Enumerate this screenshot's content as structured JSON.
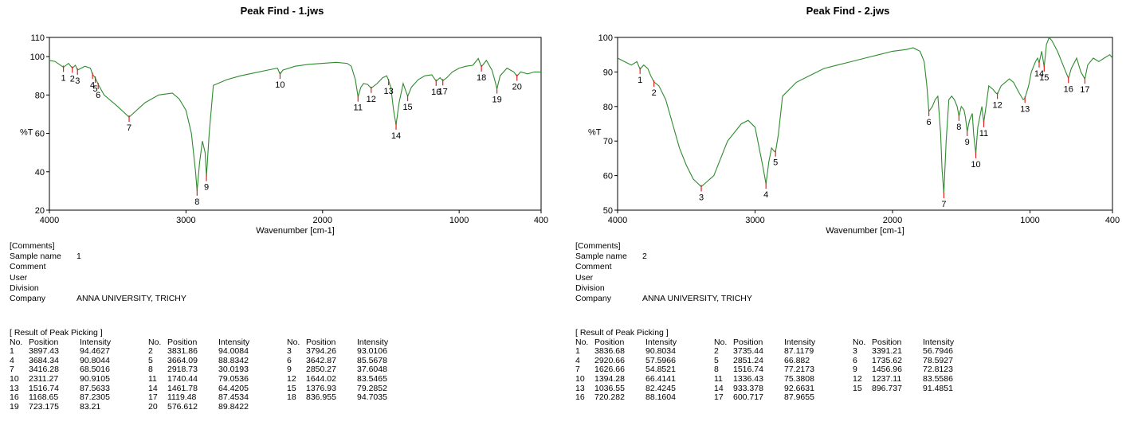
{
  "panels": [
    {
      "title": "Peak Find - 1.jws",
      "comments_header": "[Comments]",
      "fields": [
        {
          "label": "Sample name",
          "value": "1"
        },
        {
          "label": "Comment",
          "value": ""
        },
        {
          "label": "User",
          "value": ""
        },
        {
          "label": "Division",
          "value": ""
        },
        {
          "label": "Company",
          "value": "ANNA UNIVERSITY, TRICHY"
        }
      ],
      "results_header": "[ Result of Peak Picking ]",
      "columns": [
        "No.",
        "Position",
        "Intensity"
      ],
      "peaks": [
        [
          "1",
          "3897.43",
          "94.4627"
        ],
        [
          "2",
          "3831.86",
          "94.0084"
        ],
        [
          "3",
          "3794.26",
          "93.0106"
        ],
        [
          "4",
          "3684.34",
          "90.8044"
        ],
        [
          "5",
          "3664.09",
          "88.8342"
        ],
        [
          "6",
          "3642.87",
          "85.5678"
        ],
        [
          "7",
          "3416.28",
          "68.5016"
        ],
        [
          "8",
          "2918.73",
          "30.0193"
        ],
        [
          "9",
          "2850.27",
          "37.6048"
        ],
        [
          "10",
          "2311.27",
          "90.9105"
        ],
        [
          "11",
          "1740.44",
          "79.0536"
        ],
        [
          "12",
          "1644.02",
          "83.5465"
        ],
        [
          "13",
          "1516.74",
          "87.5633"
        ],
        [
          "14",
          "1461.78",
          "64.4205"
        ],
        [
          "15",
          "1376.93",
          "79.2852"
        ],
        [
          "16",
          "1168.65",
          "87.2305"
        ],
        [
          "17",
          "1119.48",
          "87.4534"
        ],
        [
          "18",
          "836.955",
          "94.7035"
        ],
        [
          "19",
          "723.175",
          "83.21"
        ],
        [
          "20",
          "576.612",
          "89.8422"
        ]
      ]
    },
    {
      "title": "Peak Find - 2.jws",
      "comments_header": "[Comments]",
      "fields": [
        {
          "label": "Sample name",
          "value": "2"
        },
        {
          "label": "Comment",
          "value": ""
        },
        {
          "label": "User",
          "value": ""
        },
        {
          "label": "Division",
          "value": ""
        },
        {
          "label": "Company",
          "value": "ANNA UNIVERSITY, TRICHY"
        }
      ],
      "results_header": "[ Result of Peak Picking ]",
      "columns": [
        "No.",
        "Position",
        "Intensity"
      ],
      "peaks": [
        [
          "1",
          "3836.68",
          "90.8034"
        ],
        [
          "2",
          "3735.44",
          "87.1179"
        ],
        [
          "3",
          "3391.21",
          "56.7946"
        ],
        [
          "4",
          "2920.66",
          "57.5966"
        ],
        [
          "5",
          "2851.24",
          "66.882"
        ],
        [
          "6",
          "1735.62",
          "78.5927"
        ],
        [
          "7",
          "1626.66",
          "54.8521"
        ],
        [
          "8",
          "1516.74",
          "77.2173"
        ],
        [
          "9",
          "1456.96",
          "72.8123"
        ],
        [
          "10",
          "1394.28",
          "66.4141"
        ],
        [
          "11",
          "1336.43",
          "75.3808"
        ],
        [
          "12",
          "1237.11",
          "83.5586"
        ],
        [
          "13",
          "1036.55",
          "82.4245"
        ],
        [
          "14",
          "933.378",
          "92.6631"
        ],
        [
          "15",
          "896.737",
          "91.4851"
        ],
        [
          "16",
          "720.282",
          "88.1604"
        ],
        [
          "17",
          "600.717",
          "87.9655"
        ]
      ]
    }
  ],
  "chart_data": [
    {
      "type": "line",
      "title": "Peak Find - 1.jws",
      "xlabel": "Wavenumber [cm-1]",
      "ylabel": "%T",
      "xlim": [
        4000,
        400
      ],
      "ylim": [
        20,
        110
      ],
      "xticks": [
        4000,
        3000,
        2000,
        1000,
        400
      ],
      "yticks": [
        20,
        40,
        60,
        80,
        100,
        110
      ],
      "grid": false,
      "line_color": "#2e8b2e",
      "marker_color": "#e02020",
      "series": [
        {
          "x": [
            4000,
            3960,
            3897.43,
            3860,
            3831.86,
            3810,
            3794.26,
            3740,
            3700,
            3684.34,
            3664.09,
            3642.87,
            3600,
            3500,
            3416.28,
            3300,
            3200,
            3100,
            3050,
            3000,
            2960,
            2930,
            2918.73,
            2900,
            2880,
            2860,
            2850.27,
            2830,
            2800,
            2700,
            2600,
            2500,
            2400,
            2330,
            2311.27,
            2290,
            2200,
            2100,
            2000,
            1900,
            1820,
            1790,
            1760,
            1740.44,
            1720,
            1700,
            1670,
            1644.02,
            1600,
            1560,
            1530,
            1516.74,
            1500,
            1480,
            1461.78,
            1440,
            1410,
            1376.93,
            1350,
            1300,
            1250,
            1200,
            1168.65,
            1140,
            1119.48,
            1090,
            1050,
            1000,
            950,
            900,
            860,
            836.955,
            800,
            760,
            740,
            723.175,
            700,
            650,
            600,
            576.612,
            550,
            500,
            450,
            400
          ],
          "y": [
            98,
            97.5,
            94.4627,
            96.5,
            94.0084,
            95.5,
            93.0106,
            95,
            94,
            90.8044,
            88.8342,
            85.5678,
            80,
            74,
            68.5016,
            76,
            80,
            81,
            78,
            72,
            60,
            40,
            30.0193,
            45,
            56,
            50,
            37.6048,
            60,
            85,
            88,
            90,
            91.5,
            93,
            94,
            90.9105,
            93,
            95,
            96,
            96.5,
            97,
            96.5,
            95,
            88,
            79.0536,
            84,
            86,
            85.5,
            83.5465,
            86,
            89,
            90,
            87.5633,
            84,
            72,
            64.4205,
            76,
            86,
            79.2852,
            84,
            88,
            90,
            90.5,
            87.2305,
            89,
            87.4534,
            89,
            92,
            94,
            95,
            95.5,
            99,
            94.7035,
            98,
            93,
            88,
            83.21,
            90,
            94,
            92,
            89.8422,
            92,
            91,
            92,
            92
          ]
        }
      ],
      "peak_labels": [
        "1",
        "2",
        "3",
        "4",
        "5",
        "6",
        "7",
        "8",
        "9",
        "10",
        "11",
        "12",
        "13",
        "14",
        "15",
        "16",
        "17",
        "18",
        "19",
        "20"
      ]
    },
    {
      "type": "line",
      "title": "Peak Find - 2.jws",
      "xlabel": "Wavenumber [cm-1]",
      "ylabel": "%T",
      "xlim": [
        4000,
        400
      ],
      "ylim": [
        50,
        100
      ],
      "xticks": [
        4000,
        3000,
        2000,
        1000,
        400
      ],
      "yticks": [
        50,
        60,
        70,
        80,
        90,
        100
      ],
      "grid": false,
      "line_color": "#2e8b2e",
      "marker_color": "#e02020",
      "series": [
        {
          "x": [
            4000,
            3950,
            3900,
            3860,
            3836.68,
            3810,
            3780,
            3760,
            3735.44,
            3700,
            3650,
            3600,
            3550,
            3500,
            3450,
            3391.21,
            3300,
            3200,
            3100,
            3050,
            3000,
            2960,
            2940,
            2920.66,
            2900,
            2880,
            2860,
            2851.24,
            2830,
            2800,
            2700,
            2600,
            2500,
            2400,
            2300,
            2200,
            2100,
            2000,
            1900,
            1850,
            1800,
            1770,
            1750,
            1735.62,
            1710,
            1690,
            1670,
            1650,
            1640,
            1626.66,
            1610,
            1590,
            1570,
            1550,
            1530,
            1516.74,
            1500,
            1480,
            1470,
            1456.96,
            1440,
            1420,
            1410,
            1394.28,
            1380,
            1360,
            1350,
            1336.43,
            1320,
            1300,
            1270,
            1250,
            1237.11,
            1210,
            1180,
            1150,
            1120,
            1080,
            1050,
            1036.55,
            1010,
            990,
            960,
            945,
            933.378,
            915,
            896.737,
            880,
            860,
            840,
            800,
            760,
            740,
            720.282,
            700,
            660,
            630,
            600.717,
            580,
            540,
            500,
            460,
            420,
            400
          ],
          "y": [
            94,
            93,
            92,
            93,
            90.8034,
            92,
            91,
            89,
            87.1179,
            86,
            82,
            75,
            68,
            63,
            59,
            56.7946,
            60,
            70,
            75,
            76,
            74,
            66,
            62,
            57.5966,
            64,
            68,
            67,
            66.882,
            72,
            83,
            87,
            89,
            91,
            92,
            93,
            94,
            95,
            96,
            96.5,
            97,
            96,
            93,
            86,
            78.5927,
            80,
            82,
            83,
            72,
            62,
            54.8521,
            70,
            82,
            83,
            82,
            80,
            77.2173,
            80,
            79,
            77,
            72.8123,
            76,
            78,
            72,
            66.4141,
            74,
            78,
            80,
            75.3808,
            80,
            86,
            85,
            84,
            83.5586,
            86,
            87,
            88,
            87,
            84,
            82,
            82.4245,
            86,
            90,
            93,
            94,
            92.6631,
            96,
            91.4851,
            98,
            100,
            99,
            96,
            92,
            90,
            88.1604,
            91,
            94,
            90,
            87.9655,
            92,
            94,
            93,
            94,
            95,
            94
          ]
        }
      ],
      "peak_labels": [
        "1",
        "2",
        "3",
        "4",
        "5",
        "6",
        "7",
        "8",
        "9",
        "10",
        "11",
        "12",
        "13",
        "14",
        "15",
        "16",
        "17"
      ]
    }
  ]
}
